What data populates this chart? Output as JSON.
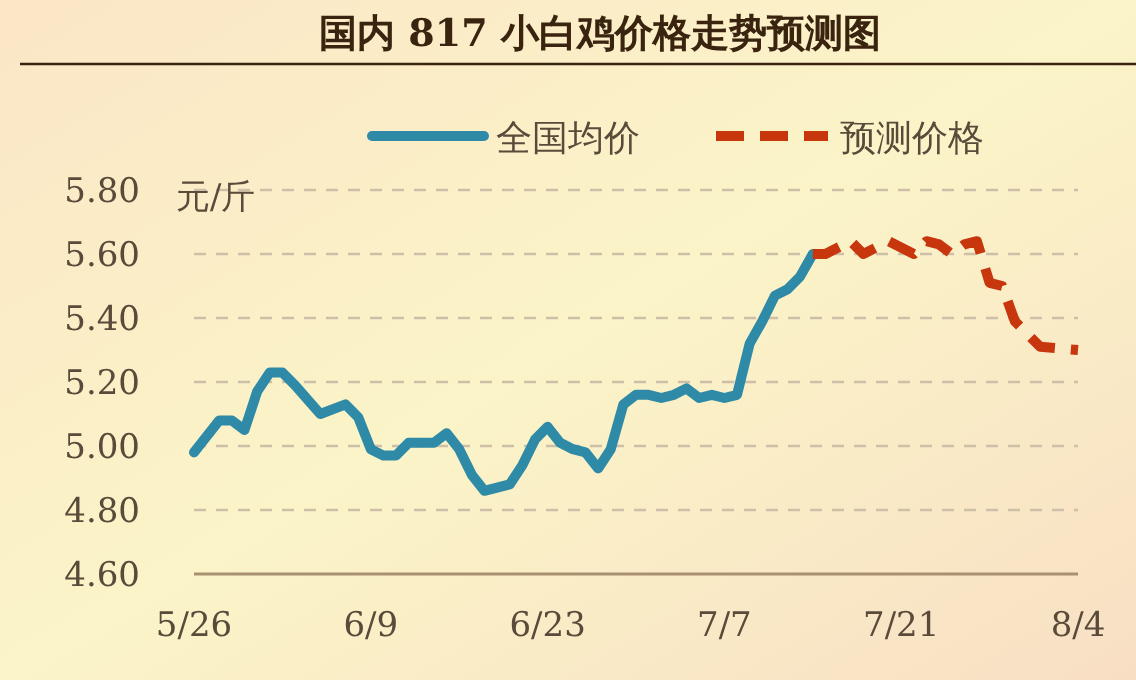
{
  "chart_data": {
    "type": "line",
    "title": "国内 817 小白鸡价格走势预测图",
    "ylabel": "元/斤",
    "xlim": [
      "--05-26",
      "--08-04"
    ],
    "xticks": [
      {
        "value": "--05-26",
        "label": "5/26"
      },
      {
        "value": "--06-09",
        "label": "6/9"
      },
      {
        "value": "--06-23",
        "label": "6/23"
      },
      {
        "value": "--07-07",
        "label": "7/7"
      },
      {
        "value": "--07-21",
        "label": "7/21"
      },
      {
        "value": "--08-04",
        "label": "8/4"
      }
    ],
    "ylim": [
      4.6,
      5.8
    ],
    "yticks": [
      {
        "value": 4.6,
        "label": "4.60"
      },
      {
        "value": 4.8,
        "label": "4.80"
      },
      {
        "value": 5.0,
        "label": "5.00"
      },
      {
        "value": 5.2,
        "label": "5.20"
      },
      {
        "value": 5.4,
        "label": "5.40"
      },
      {
        "value": 5.6,
        "label": "5.60"
      },
      {
        "value": 5.8,
        "label": "5.80"
      }
    ],
    "grid": "y",
    "legend": "top",
    "series": [
      {
        "name": "全国均价",
        "color": "#2e8aa6",
        "line_style": "solid",
        "x": [
          "--05-26",
          "--05-28",
          "--05-29",
          "--05-30",
          "--05-31",
          "--06-01",
          "--06-02",
          "--06-03",
          "--06-05",
          "--06-07",
          "--06-08",
          "--06-09",
          "--06-10",
          "--06-11",
          "--06-12",
          "--06-14",
          "--06-15",
          "--06-16",
          "--06-17",
          "--06-18",
          "--06-19",
          "--06-20",
          "--06-21",
          "--06-22",
          "--06-23",
          "--06-24",
          "--06-25",
          "--06-26",
          "--06-27",
          "--06-28",
          "--06-29",
          "--06-30",
          "--07-01",
          "--07-02",
          "--07-03",
          "--07-04",
          "--07-05",
          "--07-06",
          "--07-07",
          "--07-08",
          "--07-09",
          "--07-10",
          "--07-11",
          "--07-12",
          "--07-13",
          "--07-14"
        ],
        "values": [
          4.98,
          5.08,
          5.08,
          5.05,
          5.17,
          5.23,
          5.23,
          5.19,
          5.1,
          5.13,
          5.09,
          4.99,
          4.97,
          4.97,
          5.01,
          5.01,
          5.04,
          4.99,
          4.91,
          4.86,
          4.87,
          4.88,
          4.94,
          5.02,
          5.06,
          5.01,
          4.99,
          4.98,
          4.93,
          4.99,
          5.13,
          5.16,
          5.16,
          5.15,
          5.16,
          5.18,
          5.15,
          5.16,
          5.15,
          5.16,
          5.32,
          5.39,
          5.47,
          5.49,
          5.53,
          5.6
        ]
      },
      {
        "name": "预测价格",
        "color": "#c8360e",
        "line_style": "dashed",
        "x": [
          "--07-14",
          "--07-15",
          "--07-17",
          "--07-18",
          "--07-19",
          "--07-20",
          "--07-22",
          "--07-23",
          "--07-24",
          "--07-25",
          "--07-26",
          "--07-27",
          "--07-28",
          "--07-29",
          "--07-30",
          "--08-01",
          "--08-04"
        ],
        "values": [
          5.6,
          5.6,
          5.64,
          5.6,
          5.62,
          5.64,
          5.6,
          5.64,
          5.63,
          5.6,
          5.63,
          5.64,
          5.51,
          5.5,
          5.39,
          5.31,
          5.3
        ]
      }
    ]
  }
}
